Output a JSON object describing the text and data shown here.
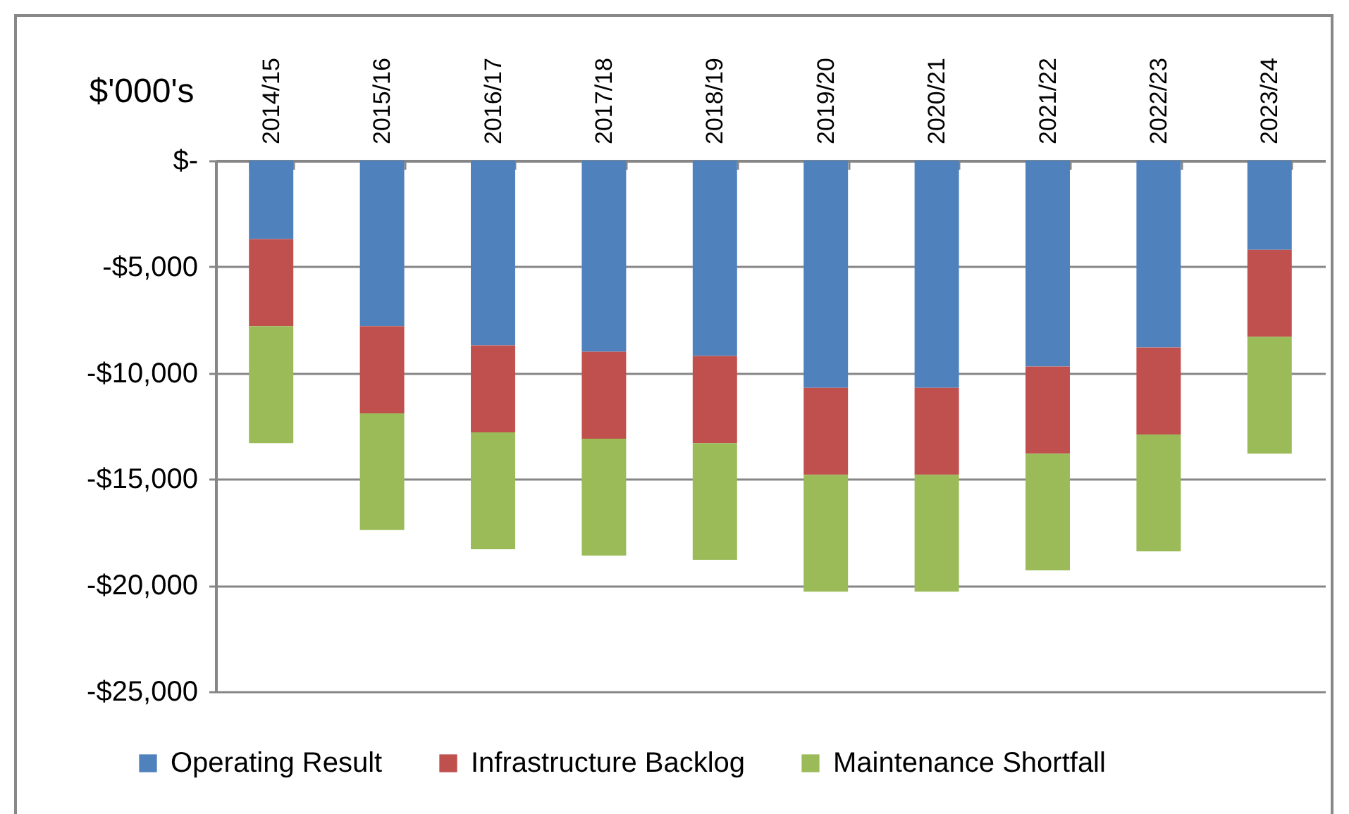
{
  "chart_data": {
    "type": "bar",
    "stacked": true,
    "ylabel": "$'000's",
    "categories": [
      "2014/15",
      "2015/16",
      "2016/17",
      "2017/18",
      "2018/19",
      "2019/20",
      "2020/21",
      "2021/22",
      "2022/23",
      "2023/24"
    ],
    "series": [
      {
        "name": "Operating Result",
        "color": "#4f81bd",
        "values": [
          -3700,
          -7800,
          -8700,
          -9000,
          -9200,
          -10700,
          -10700,
          -9700,
          -8800,
          -4200
        ]
      },
      {
        "name": "Infrastructure Backlog",
        "color": "#c0504d",
        "values": [
          -4100,
          -4100,
          -4100,
          -4100,
          -4100,
          -4100,
          -4100,
          -4100,
          -4100,
          -4100
        ]
      },
      {
        "name": "Maintenance Shortfall",
        "color": "#9bbb59",
        "values": [
          -5500,
          -5500,
          -5500,
          -5500,
          -5500,
          -5500,
          -5500,
          -5500,
          -5500,
          -5500
        ]
      }
    ],
    "ylim": [
      -25000,
      0
    ],
    "yticks": [
      {
        "value": 0,
        "label": "$-"
      },
      {
        "value": -5000,
        "label": "-$5,000"
      },
      {
        "value": -10000,
        "label": "-$10,000"
      },
      {
        "value": -15000,
        "label": "-$15,000"
      },
      {
        "value": -20000,
        "label": "-$20,000"
      },
      {
        "value": -25000,
        "label": "-$25,000"
      }
    ],
    "grid": "y",
    "legend": "bottom"
  }
}
